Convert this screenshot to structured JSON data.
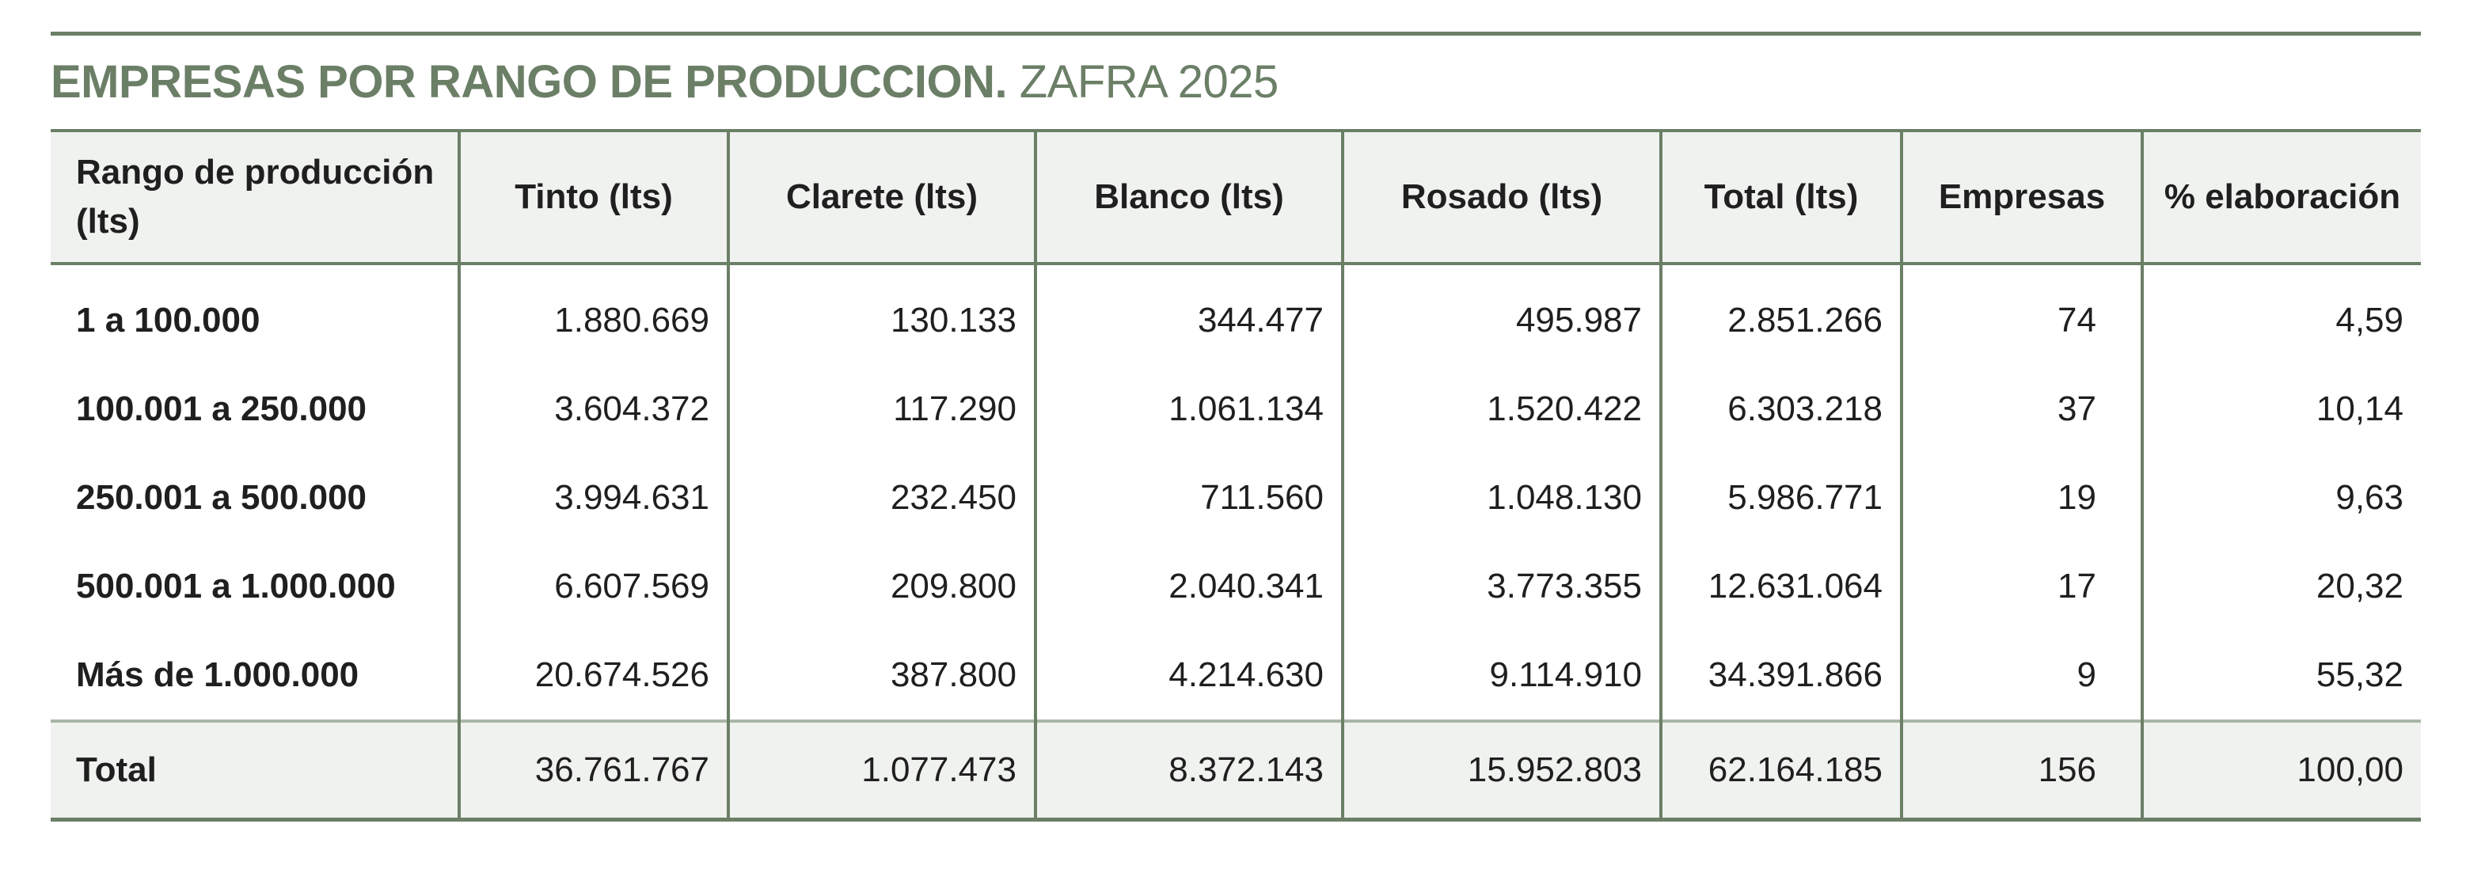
{
  "title": {
    "bold": "EMPRESAS POR RANGO DE PRODUCCION.",
    "light": "ZAFRA 2025"
  },
  "columns": [
    "Rango de producción (lts)",
    "Tinto (lts)",
    "Clarete (lts)",
    "Blanco (lts)",
    "Rosado (lts)",
    "Total (lts)",
    "Empresas",
    "% elaboración"
  ],
  "rows": [
    [
      "1 a 100.000",
      "1.880.669",
      "130.133",
      "344.477",
      "495.987",
      "2.851.266",
      "74",
      "4,59"
    ],
    [
      "100.001 a 250.000",
      "3.604.372",
      "117.290",
      "1.061.134",
      "1.520.422",
      "6.303.218",
      "37",
      "10,14"
    ],
    [
      "250.001 a 500.000",
      "3.994.631",
      "232.450",
      "711.560",
      "1.048.130",
      "5.986.771",
      "19",
      "9,63"
    ],
    [
      "500.001 a 1.000.000",
      "6.607.569",
      "209.800",
      "2.040.341",
      "3.773.355",
      "12.631.064",
      "17",
      "20,32"
    ],
    [
      "Más de 1.000.000",
      "20.674.526",
      "387.800",
      "4.214.630",
      "9.114.910",
      "34.391.866",
      "9",
      "55,32"
    ]
  ],
  "total": [
    "Total",
    "36.761.767",
    "1.077.473",
    "8.372.143",
    "15.952.803",
    "62.164.185",
    "156",
    "100,00"
  ],
  "colors": {
    "accent": "#6b7f67",
    "header_bg": "#f0f2ef"
  }
}
